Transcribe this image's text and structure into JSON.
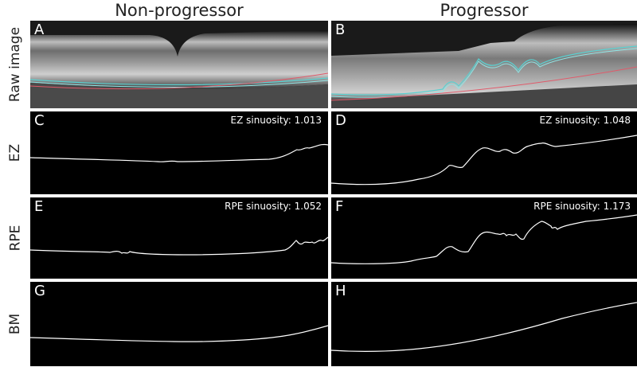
{
  "columns": {
    "left_title": "Non-progressor",
    "right_title": "Progressor"
  },
  "rows": {
    "raw": "Raw image",
    "ez": "EZ",
    "rpe": "RPE",
    "bm": "BM"
  },
  "panels": {
    "A": {
      "letter": "A"
    },
    "B": {
      "letter": "B"
    },
    "C": {
      "letter": "C",
      "sinuosity": "EZ sinuosity: 1.013"
    },
    "D": {
      "letter": "D",
      "sinuosity": "EZ sinuosity: 1.048"
    },
    "E": {
      "letter": "E",
      "sinuosity": "RPE sinuosity: 1.052"
    },
    "F": {
      "letter": "F",
      "sinuosity": "RPE sinuosity: 1.173"
    },
    "G": {
      "letter": "G"
    },
    "H": {
      "letter": "H"
    }
  },
  "colors": {
    "trace": "#ffffff",
    "panel_bg": "#000000",
    "ez_overlay": "#5ad1d1",
    "rpe_overlay": "#8fe6e6",
    "bm_overlay": "#e05a6a"
  }
}
